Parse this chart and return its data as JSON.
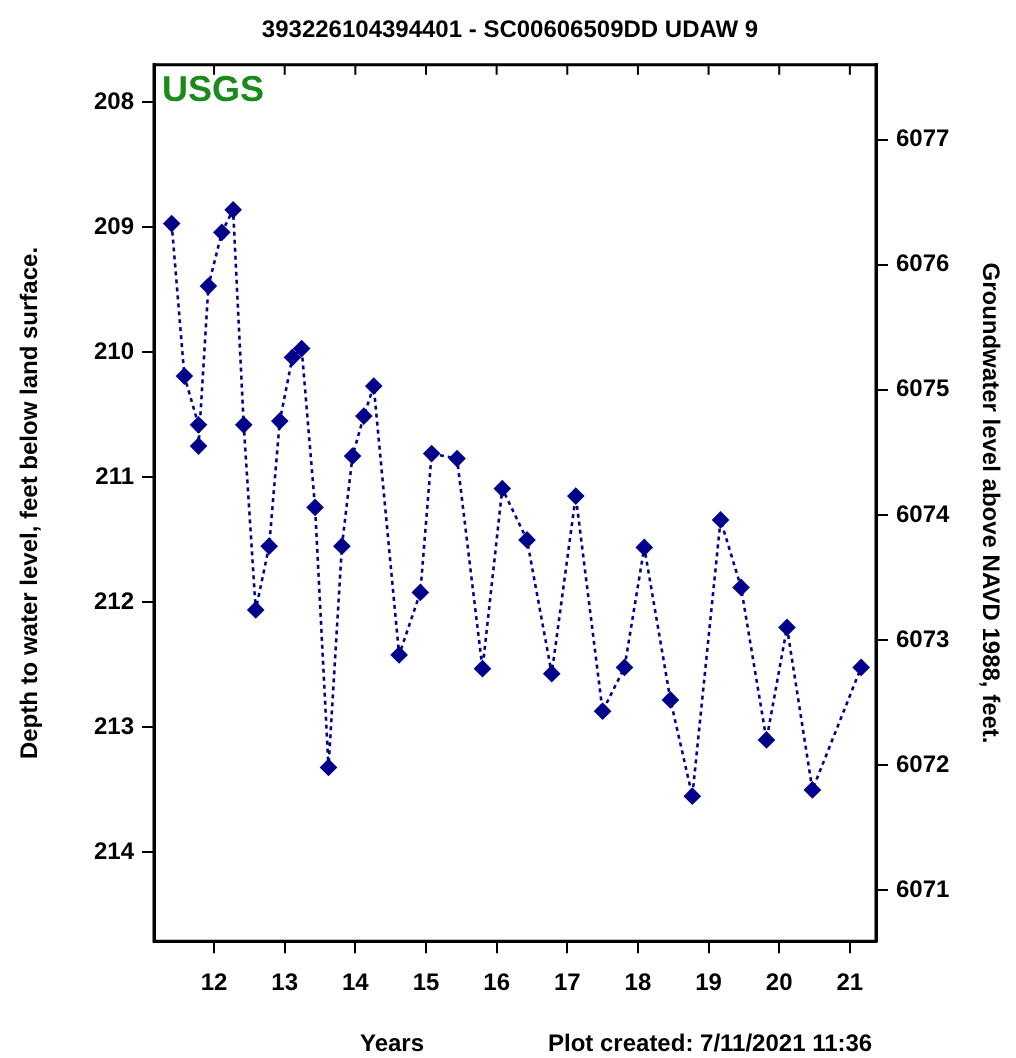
{
  "chart_data": {
    "type": "line",
    "title": "393226104394401 - SC00606509DD UDAW 9",
    "xlabel": "Years",
    "ylabel": "Depth to water level, feet below land surface.",
    "y2label": "Groundwater level above NAVD 1988, feet.",
    "annotations": [
      "USGS",
      "Plot created: 7/11/2021 11:36"
    ],
    "series": [
      {
        "color": "#00008b",
        "x": [
          11.4,
          11.58,
          11.78,
          11.78,
          11.92,
          12.11,
          12.27,
          12.42,
          12.59,
          12.78,
          12.93,
          13.11,
          13.24,
          13.43,
          13.62,
          13.81,
          13.96,
          14.12,
          14.26,
          14.62,
          14.92,
          15.08,
          15.44,
          15.8,
          16.08,
          16.43,
          16.78,
          17.12,
          17.5,
          17.81,
          18.09,
          18.46,
          18.77,
          19.17,
          19.46,
          19.82,
          20.11,
          20.47,
          21.16
        ],
        "values": [
          208.97,
          210.19,
          210.58,
          210.75,
          209.47,
          209.04,
          208.86,
          210.58,
          212.06,
          211.55,
          210.55,
          210.04,
          209.97,
          211.24,
          213.32,
          211.55,
          210.83,
          210.51,
          210.27,
          212.42,
          211.92,
          210.81,
          210.85,
          212.53,
          211.09,
          211.5,
          212.57,
          211.15,
          212.87,
          212.52,
          211.56,
          212.78,
          213.55,
          211.34,
          211.88,
          213.1,
          212.2,
          213.5,
          212.52
        ]
      }
    ],
    "xlim": [
      11.15,
      21.37
    ],
    "xticks": [
      12,
      13,
      14,
      15,
      16,
      17,
      18,
      19,
      20,
      21
    ],
    "ylim": [
      214.71,
      207.7
    ],
    "yticks": [
      208,
      209,
      210,
      211,
      212,
      213,
      214
    ],
    "y2lim": [
      6070.59,
      6077.6
    ],
    "y2ticks": [
      6071,
      6072,
      6073,
      6074,
      6075,
      6076,
      6077
    ],
    "grid": false,
    "legend": false,
    "marker": "diamond",
    "line_style": "dotted"
  }
}
